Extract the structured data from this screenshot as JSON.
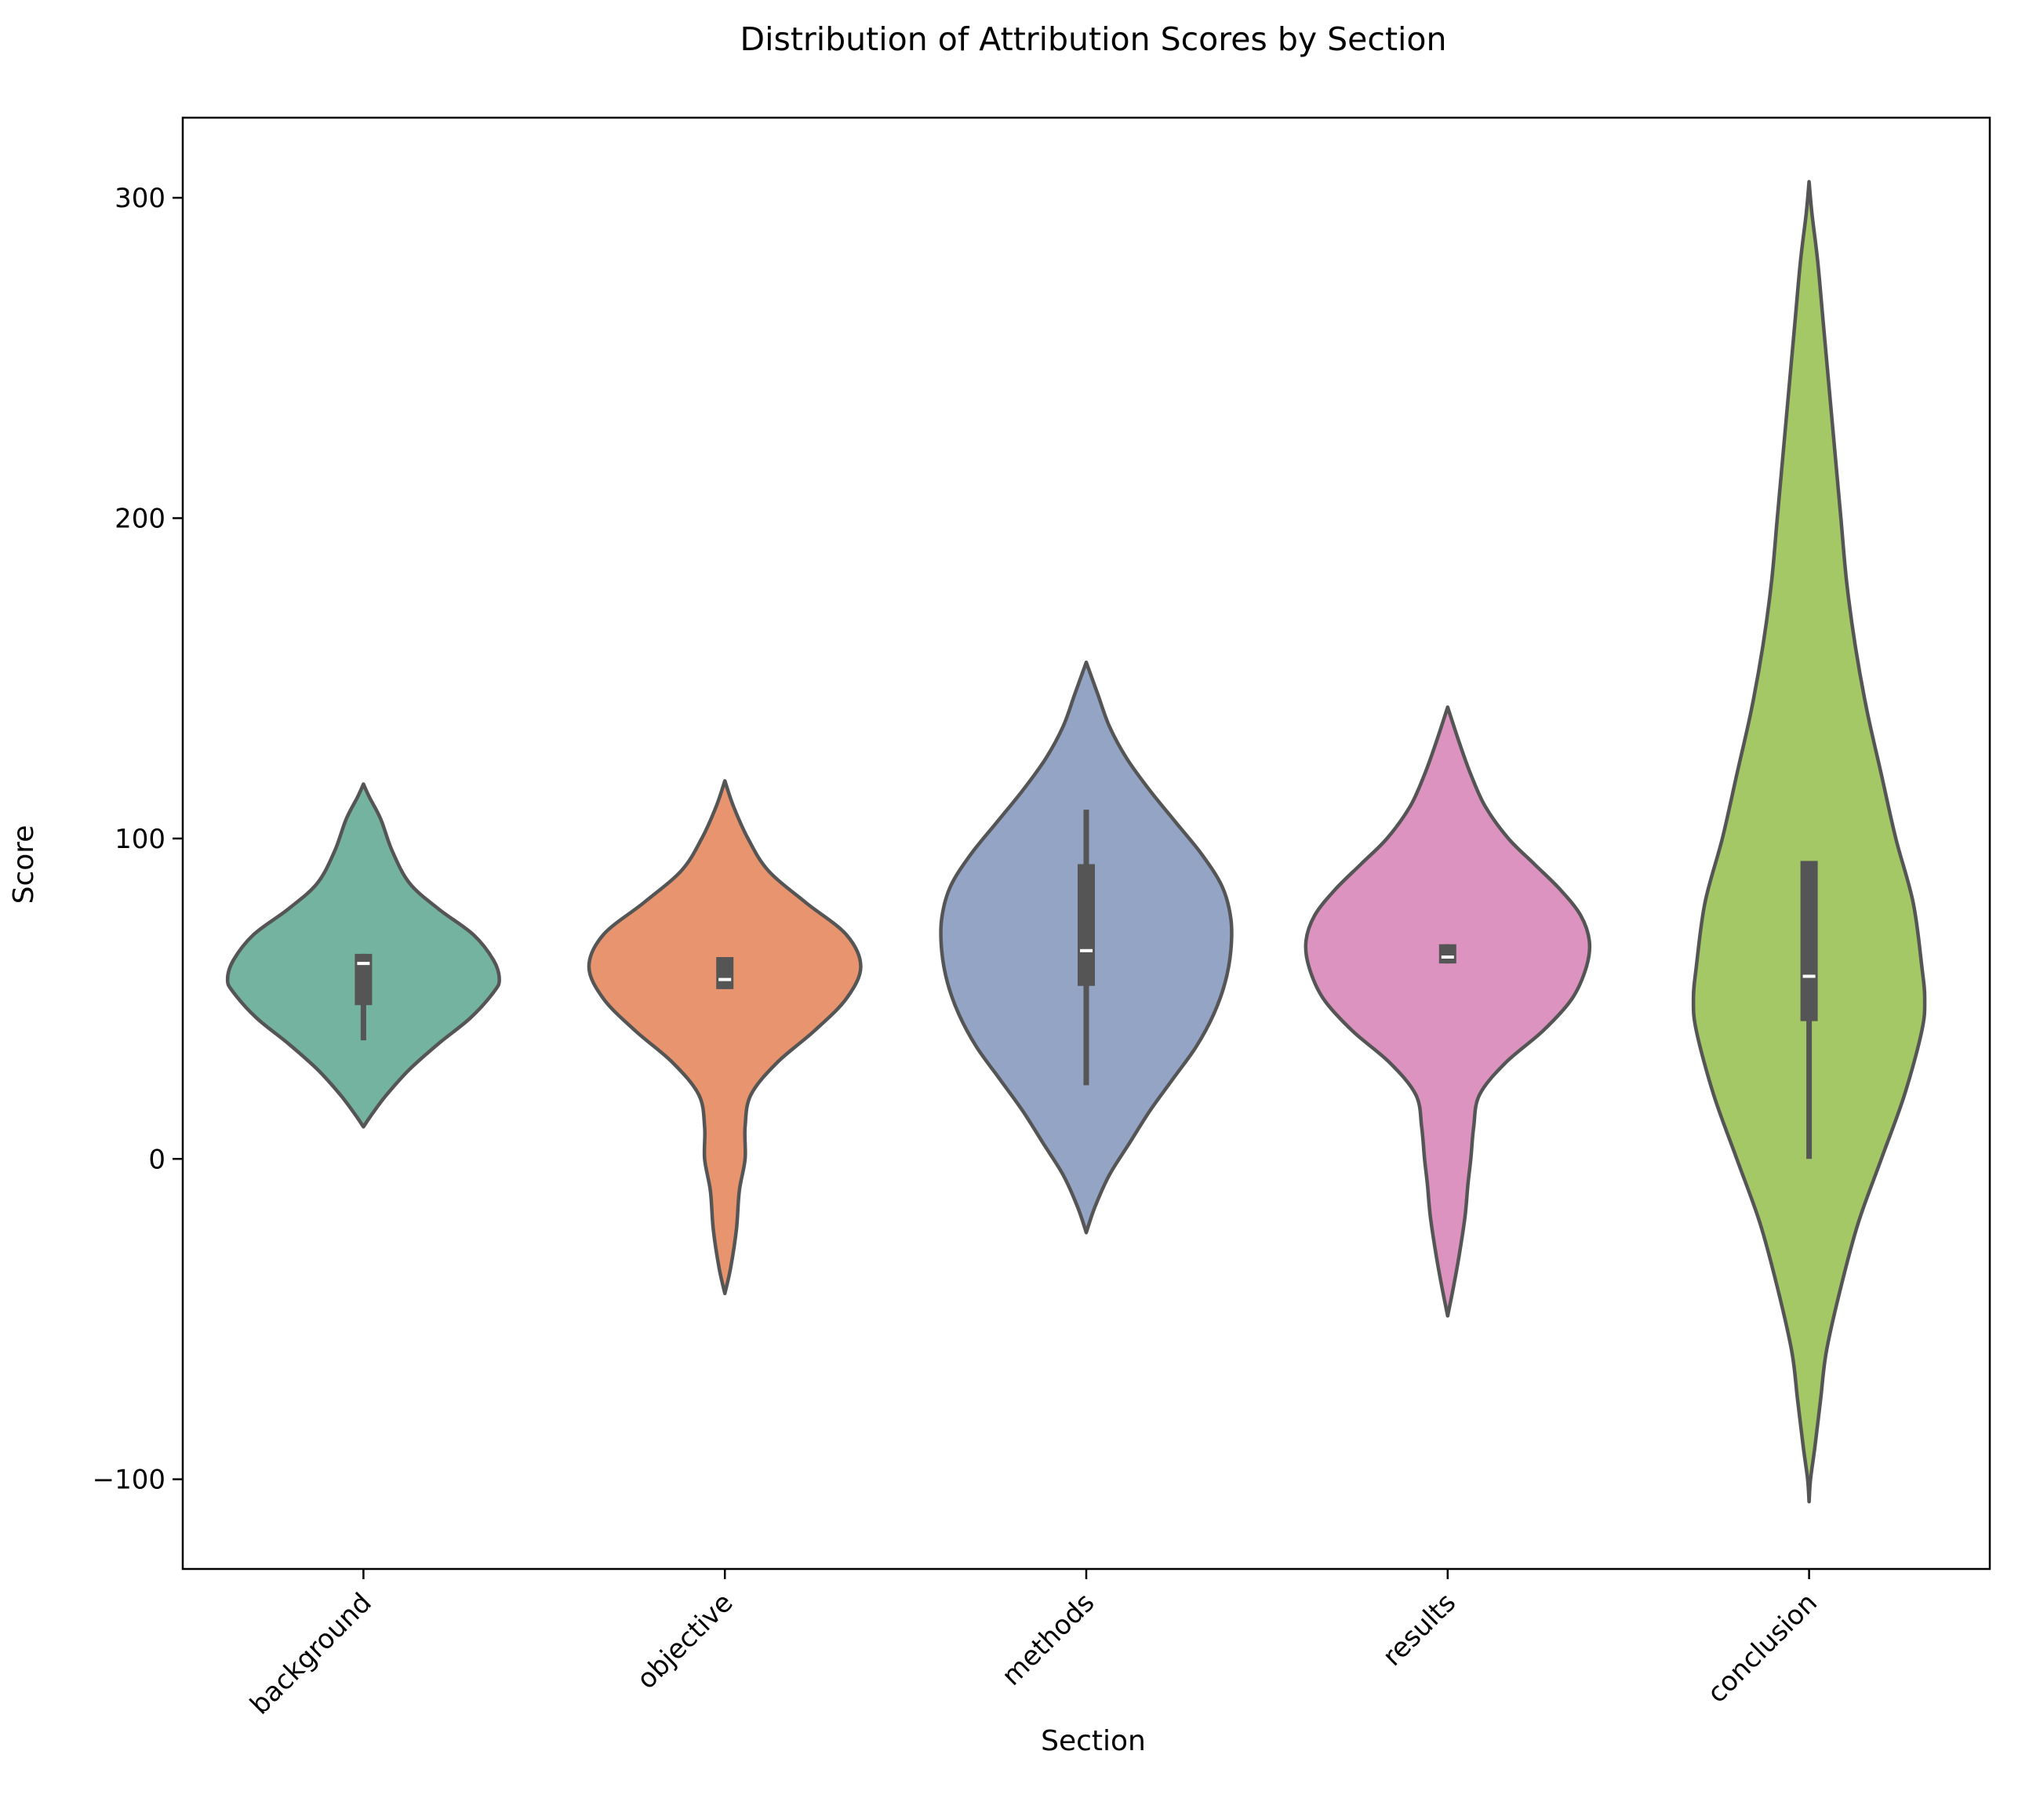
{
  "chart_data": {
    "type": "violin",
    "title": "Distribution of Attribution Scores by Section",
    "xlabel": "Section",
    "ylabel": "Score",
    "categories": [
      "background",
      "objective",
      "methods",
      "results",
      "conclusion"
    ],
    "yticks": [
      -100,
      0,
      100,
      200,
      300
    ],
    "ylim": [
      -128,
      325
    ],
    "grid": false,
    "colors": [
      "#73b3a0",
      "#e8956f",
      "#93a4c5",
      "#dc93bf",
      "#a3c865"
    ],
    "outline_color": "#555555",
    "violins": [
      {
        "name": "background",
        "min": 10,
        "max": 117,
        "q1": 48,
        "median": 61,
        "q3": 64,
        "whisker_low": 37,
        "whisker_high": 64,
        "density": [
          [
            10,
            0.0
          ],
          [
            14,
            0.03
          ],
          [
            20,
            0.08
          ],
          [
            28,
            0.16
          ],
          [
            36,
            0.26
          ],
          [
            44,
            0.37
          ],
          [
            52,
            0.45
          ],
          [
            56,
            0.47
          ],
          [
            62,
            0.45
          ],
          [
            70,
            0.38
          ],
          [
            78,
            0.26
          ],
          [
            86,
            0.16
          ],
          [
            96,
            0.1
          ],
          [
            106,
            0.06
          ],
          [
            113,
            0.02
          ],
          [
            117,
            0.0
          ]
        ]
      },
      {
        "name": "objective",
        "min": -42,
        "max": 118,
        "q1": 53,
        "median": 56,
        "q3": 63,
        "whisker_low": 53,
        "whisker_high": 63,
        "density": [
          [
            -42,
            0.0
          ],
          [
            -34,
            0.02
          ],
          [
            -22,
            0.04
          ],
          [
            -10,
            0.05
          ],
          [
            0,
            0.07
          ],
          [
            10,
            0.07
          ],
          [
            20,
            0.09
          ],
          [
            30,
            0.18
          ],
          [
            40,
            0.31
          ],
          [
            50,
            0.42
          ],
          [
            60,
            0.47
          ],
          [
            70,
            0.42
          ],
          [
            80,
            0.28
          ],
          [
            90,
            0.15
          ],
          [
            100,
            0.08
          ],
          [
            110,
            0.03
          ],
          [
            118,
            0.0
          ]
        ]
      },
      {
        "name": "methods",
        "min": -23,
        "max": 155,
        "q1": 54,
        "median": 65,
        "q3": 92,
        "whisker_low": 23,
        "whisker_high": 109,
        "density": [
          [
            -23,
            0.0
          ],
          [
            -15,
            0.03
          ],
          [
            -5,
            0.08
          ],
          [
            5,
            0.15
          ],
          [
            15,
            0.22
          ],
          [
            25,
            0.3
          ],
          [
            35,
            0.38
          ],
          [
            45,
            0.44
          ],
          [
            55,
            0.48
          ],
          [
            65,
            0.5
          ],
          [
            75,
            0.5
          ],
          [
            85,
            0.47
          ],
          [
            95,
            0.4
          ],
          [
            105,
            0.31
          ],
          [
            115,
            0.22
          ],
          [
            125,
            0.14
          ],
          [
            135,
            0.08
          ],
          [
            145,
            0.04
          ],
          [
            155,
            0.0
          ]
        ]
      },
      {
        "name": "results",
        "min": -49,
        "max": 141,
        "q1": 61,
        "median": 63,
        "q3": 67,
        "whisker_low": 61,
        "whisker_high": 67,
        "density": [
          [
            -49,
            0.0
          ],
          [
            -40,
            0.02
          ],
          [
            -30,
            0.04
          ],
          [
            -18,
            0.06
          ],
          [
            -8,
            0.07
          ],
          [
            0,
            0.08
          ],
          [
            10,
            0.09
          ],
          [
            20,
            0.11
          ],
          [
            30,
            0.2
          ],
          [
            40,
            0.33
          ],
          [
            50,
            0.43
          ],
          [
            60,
            0.48
          ],
          [
            68,
            0.49
          ],
          [
            76,
            0.46
          ],
          [
            84,
            0.39
          ],
          [
            92,
            0.3
          ],
          [
            100,
            0.21
          ],
          [
            110,
            0.13
          ],
          [
            120,
            0.08
          ],
          [
            130,
            0.04
          ],
          [
            141,
            0.0
          ]
        ]
      },
      {
        "name": "conclusion",
        "min": -107,
        "max": 305,
        "q1": 43,
        "median": 57,
        "q3": 93,
        "whisker_low": 0,
        "whisker_high": 93,
        "density": [
          [
            -107,
            0.0
          ],
          [
            -100,
            0.005
          ],
          [
            -90,
            0.02
          ],
          [
            -75,
            0.04
          ],
          [
            -60,
            0.06
          ],
          [
            -40,
            0.11
          ],
          [
            -20,
            0.17
          ],
          [
            0,
            0.25
          ],
          [
            20,
            0.33
          ],
          [
            40,
            0.39
          ],
          [
            50,
            0.4
          ],
          [
            60,
            0.39
          ],
          [
            80,
            0.36
          ],
          [
            100,
            0.3
          ],
          [
            120,
            0.25
          ],
          [
            140,
            0.2
          ],
          [
            160,
            0.16
          ],
          [
            180,
            0.13
          ],
          [
            200,
            0.11
          ],
          [
            220,
            0.09
          ],
          [
            240,
            0.07
          ],
          [
            260,
            0.05
          ],
          [
            280,
            0.03
          ],
          [
            295,
            0.01
          ],
          [
            305,
            0.0
          ]
        ]
      }
    ]
  }
}
